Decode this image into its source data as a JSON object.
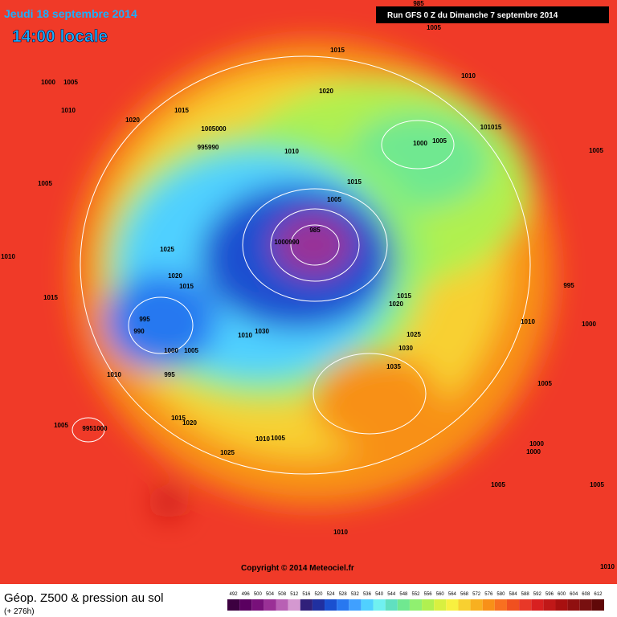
{
  "header": {
    "date": "Jeudi 18 septembre 2014",
    "time": "14:00 locale",
    "run": "Run GFS 0 Z du Dimanche 7 septembre 2014"
  },
  "footer": {
    "title": "Géop. Z500 & pression au sol",
    "lead": "(+ 276h)",
    "copyright": "Copyright © 2014 Meteociel.fr"
  },
  "legend": {
    "levels": [
      492,
      496,
      500,
      504,
      508,
      512,
      516,
      520,
      524,
      528,
      532,
      536,
      540,
      544,
      548,
      552,
      556,
      560,
      564,
      568,
      572,
      576,
      580,
      584,
      588,
      592,
      596,
      600,
      604,
      608,
      612
    ],
    "colors": [
      "#3c0040",
      "#5a0060",
      "#78107a",
      "#9a3096",
      "#b860b4",
      "#d498d0",
      "#30207a",
      "#2030a0",
      "#1a50d0",
      "#2878f0",
      "#40a0ff",
      "#50d0ff",
      "#70f0f0",
      "#60e0c0",
      "#70e890",
      "#90f070",
      "#b0f050",
      "#d8f040",
      "#f8f040",
      "#f8d030",
      "#f8b020",
      "#f89018",
      "#f87020",
      "#f05020",
      "#e83828",
      "#d82020",
      "#c01818",
      "#a81010",
      "#901010",
      "#781010",
      "#600808"
    ]
  },
  "isobars": {
    "labels": [
      "985",
      "1005",
      "1015",
      "1010",
      "1020",
      "1000",
      "1005",
      "1010",
      "1020",
      "1015",
      "1005000",
      "995990",
      "1010",
      "1015",
      "1005",
      "985",
      "1000990",
      "101015",
      "1000",
      "1005",
      "1005",
      "1005",
      "1025",
      "1010",
      "995",
      "1020",
      "1015",
      "1015",
      "1015",
      "1020",
      "995",
      "990",
      "1010",
      "1000",
      "1030",
      "1025",
      "1030",
      "1010",
      "1000",
      "1005",
      "1035",
      "1010",
      "995",
      "1005",
      "1005",
      "9951000",
      "1015",
      "1020",
      "1010",
      "1005",
      "1025",
      "1000",
      "1000",
      "1005",
      "1005",
      "1010",
      "1010"
    ]
  }
}
